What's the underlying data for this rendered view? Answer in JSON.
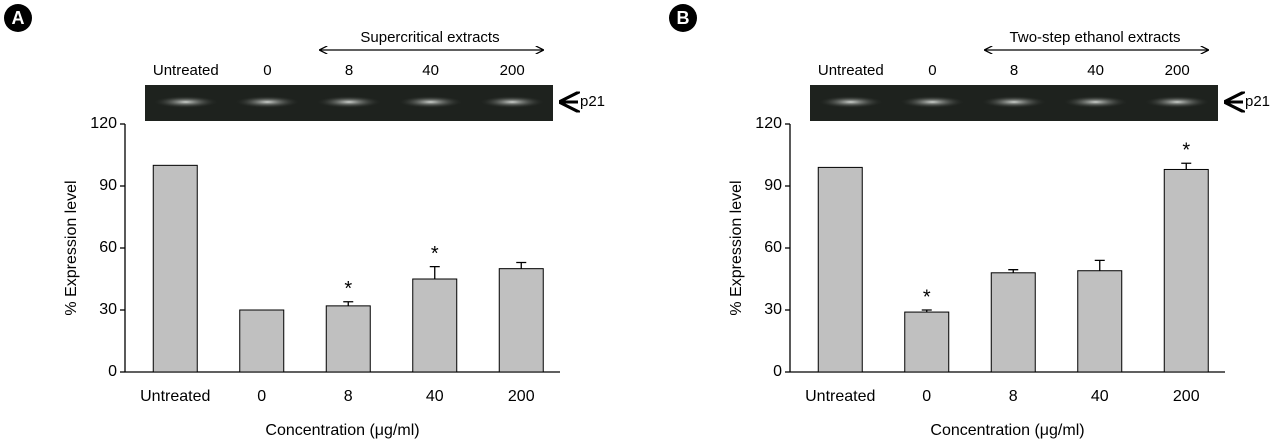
{
  "chart_data": [
    {
      "type": "bar",
      "panel": "A",
      "group_label": "Supercritical extracts",
      "blot_label": "p21",
      "categories": [
        "Untreated",
        "0",
        "8",
        "40",
        "200"
      ],
      "values": [
        100,
        30,
        32,
        45,
        50
      ],
      "errors": [
        null,
        null,
        2,
        6,
        3
      ],
      "markers": [
        null,
        null,
        "*",
        "*",
        null
      ],
      "color": "#c0c0c0",
      "ylabel": "% Expression level",
      "xlabel": "Concentration (μg/ml)",
      "ylim": [
        0,
        120
      ],
      "yticks": [
        0,
        30,
        60,
        90,
        120
      ]
    },
    {
      "type": "bar",
      "panel": "B",
      "group_label": "Two-step ethanol extracts",
      "blot_label": "p21",
      "categories": [
        "Untreated",
        "0",
        "8",
        "40",
        "200"
      ],
      "values": [
        99,
        29,
        48,
        49,
        98
      ],
      "errors": [
        null,
        1,
        1.5,
        5,
        3
      ],
      "markers": [
        null,
        "*",
        null,
        null,
        "*"
      ],
      "color": "#c0c0c0",
      "ylabel": "% Expression level",
      "xlabel": "Concentration (μg/ml)",
      "ylim": [
        0,
        120
      ],
      "yticks": [
        0,
        30,
        60,
        90,
        120
      ]
    }
  ]
}
